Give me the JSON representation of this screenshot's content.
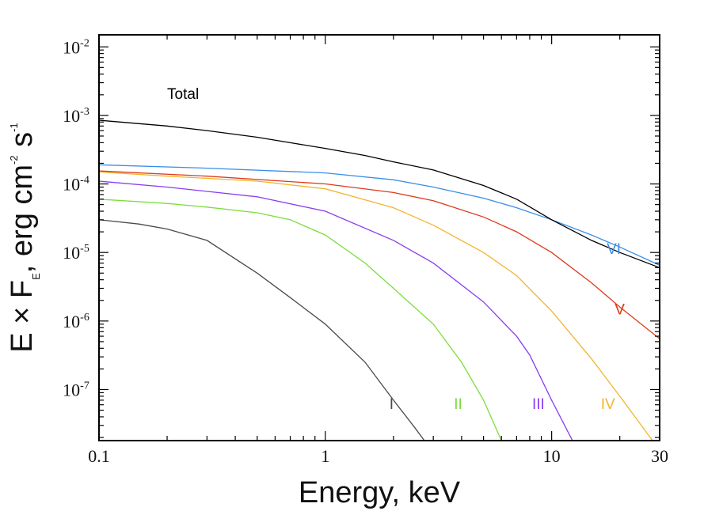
{
  "chart_data": {
    "type": "line",
    "xscale": "log",
    "yscale": "log",
    "xlim": [
      0.1,
      30
    ],
    "ylim": [
      1.8e-08,
      0.015
    ],
    "xlabel": "Energy, keV",
    "ylabel": {
      "prefix": "E × F",
      "subscript": "E",
      "unit": ", erg cm",
      "exp1": "-2",
      "s": " s",
      "exp2": "-1"
    },
    "x_ticks": [
      {
        "value": 0.1,
        "label": "0.1"
      },
      {
        "value": 1,
        "label": "1"
      },
      {
        "value": 10,
        "label": "10"
      },
      {
        "value": 30,
        "label": "30"
      }
    ],
    "y_ticks": [
      {
        "value": 1e-07,
        "base": "10",
        "exp": "-7"
      },
      {
        "value": 1e-06,
        "base": "10",
        "exp": "-6"
      },
      {
        "value": 1e-05,
        "base": "10",
        "exp": "-5"
      },
      {
        "value": 0.0001,
        "base": "10",
        "exp": "-4"
      },
      {
        "value": 0.001,
        "base": "10",
        "exp": "-3"
      },
      {
        "value": 0.01,
        "base": "10",
        "exp": "-2"
      }
    ],
    "series": [
      {
        "name": "I",
        "color": "#4a4a4a",
        "label_at": [
          1.92,
          5.2e-08
        ],
        "x": [
          0.1,
          0.15,
          0.2,
          0.3,
          0.5,
          0.7,
          1,
          1.5,
          2,
          2.5,
          3
        ],
        "y": [
          3e-05,
          2.6e-05,
          2.2e-05,
          1.5e-05,
          5e-06,
          2.2e-06,
          9e-07,
          2.5e-07,
          7e-08,
          2.7e-08,
          1.2e-08
        ]
      },
      {
        "name": "II",
        "color": "#7ddc3c",
        "label_at": [
          3.7,
          5.2e-08
        ],
        "x": [
          0.1,
          0.2,
          0.3,
          0.5,
          0.7,
          1,
          1.5,
          2,
          3,
          4,
          5,
          6
        ],
        "y": [
          6e-05,
          5.2e-05,
          4.6e-05,
          3.8e-05,
          3e-05,
          1.8e-05,
          7e-06,
          3e-06,
          9e-07,
          2.5e-07,
          7e-08,
          1.8e-08
        ]
      },
      {
        "name": "III",
        "color": "#8a3cf0",
        "label_at": [
          8.2,
          5.2e-08
        ],
        "x": [
          0.1,
          0.2,
          0.5,
          1,
          2,
          3,
          5,
          7,
          8,
          10,
          13
        ],
        "y": [
          0.00011,
          9e-05,
          6.5e-05,
          4e-05,
          1.5e-05,
          7e-06,
          1.9e-06,
          6e-07,
          3.2e-07,
          7e-08,
          1.3e-08
        ]
      },
      {
        "name": "IV",
        "color": "#f2b52e",
        "label_at": [
          16.5,
          5.2e-08
        ],
        "x": [
          0.1,
          0.2,
          0.5,
          1,
          2,
          3,
          5,
          7,
          10,
          15,
          20,
          30
        ],
        "y": [
          0.00015,
          0.00013,
          0.00011,
          8.5e-05,
          4.5e-05,
          2.5e-05,
          1e-05,
          4.6e-06,
          1.4e-06,
          2.8e-07,
          8e-08,
          1.3e-08
        ]
      },
      {
        "name": "V",
        "color": "#dd3a1c",
        "label_at": [
          19,
          1.25e-06
        ],
        "x": [
          0.1,
          0.3,
          1,
          2,
          3,
          5,
          7,
          10,
          15,
          20,
          30
        ],
        "y": [
          0.000155,
          0.00013,
          0.0001,
          7.5e-05,
          5.7e-05,
          3.3e-05,
          2e-05,
          1e-05,
          3.6e-06,
          1.6e-06,
          5.5e-07
        ]
      },
      {
        "name": "VI",
        "color": "#3a8ee8",
        "label_at": [
          17.5,
          9.5e-06
        ],
        "x": [
          0.1,
          0.3,
          1,
          2,
          3,
          5,
          7,
          10,
          15,
          20,
          30
        ],
        "y": [
          0.00019,
          0.00017,
          0.000145,
          0.000115,
          9e-05,
          6.2e-05,
          4.5e-05,
          3e-05,
          1.8e-05,
          1.2e-05,
          6.5e-06
        ]
      },
      {
        "name": "Total",
        "color": "#000000",
        "label_at": [
          0.2,
          0.00175
        ],
        "x": [
          0.1,
          0.2,
          0.3,
          0.5,
          0.7,
          1,
          1.5,
          2,
          3,
          5,
          7,
          10,
          15,
          20,
          30
        ],
        "y": [
          0.00085,
          0.0007,
          0.0006,
          0.00048,
          0.0004,
          0.00033,
          0.00026,
          0.00021,
          0.00016,
          9.5e-05,
          6e-05,
          3e-05,
          1.5e-05,
          1e-05,
          6e-06
        ]
      }
    ]
  }
}
